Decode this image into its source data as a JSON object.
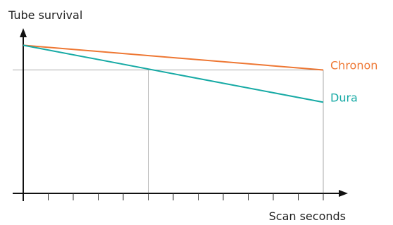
{
  "chart_data": {
    "type": "line",
    "ylabel": "Tube survival",
    "xlabel": "Scan seconds",
    "x_ticks_count": 12,
    "xlim": [
      0,
      12
    ],
    "ylim": [
      0,
      1
    ],
    "grid": false,
    "series": [
      {
        "name": "Chronon",
        "color": "#ee7733",
        "x": [
          0,
          12
        ],
        "y": [
          0.78,
          0.65
        ]
      },
      {
        "name": "Dura",
        "color": "#17aaa5",
        "x": [
          0,
          12
        ],
        "y": [
          0.78,
          0.48
        ]
      }
    ],
    "reference": {
      "y": 0.65,
      "x_cross": 5,
      "x_end": 12,
      "color": "#aaaaaa"
    }
  }
}
